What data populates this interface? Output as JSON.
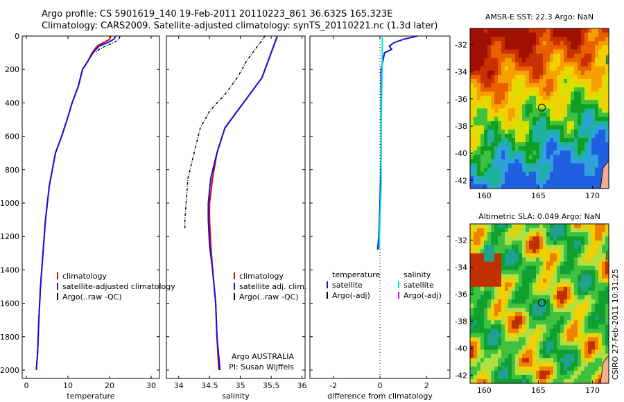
{
  "header": {
    "line1": "Argo profile: CS 5901619_140 19-Feb-2011 20110223_861 36.632S 165.323E",
    "line2": "Climatology: CARS2009. Satellite-adjusted climatology: synTS_20110221.nc (1.3d later)"
  },
  "credit": "CSIRO 27-Feb-2011 10:31:25",
  "colors": {
    "climatology": "#e00000",
    "satellite": "#1010e0",
    "argo": "#000000",
    "satellite_salinity": "#00e0e0",
    "argo_adj_salinity": "#e000e0"
  },
  "chart_data": [
    {
      "type": "line",
      "panel": "temperature",
      "xlabel": "temperature",
      "ylabel": "",
      "xlim": [
        -1,
        32
      ],
      "ylim": [
        2050,
        0
      ],
      "xticks": [
        "0",
        "10",
        "20",
        "30"
      ],
      "yticks": [
        "0",
        "200",
        "400",
        "600",
        "800",
        "1000",
        "1200",
        "1400",
        "1600",
        "1800",
        "2000"
      ],
      "legend": [
        "climatology",
        "satellite-adjusted climatology",
        "Argo(..raw -QC)"
      ],
      "legend_position": "lower-middle",
      "series": [
        {
          "name": "climatology",
          "color": "#e00000",
          "x": [
            20.3,
            20.0,
            18.5,
            17.0,
            15.8,
            14.8,
            13.5,
            12.5,
            11.0,
            9.8,
            8.5,
            7.0,
            5.5,
            4.6,
            4.0,
            3.4,
            3.0,
            2.7,
            2.4
          ],
          "y": [
            0,
            20,
            40,
            60,
            100,
            150,
            200,
            300,
            400,
            500,
            600,
            700,
            900,
            1100,
            1300,
            1500,
            1700,
            1900,
            2000
          ]
        },
        {
          "name": "satellite-adjusted climatology",
          "color": "#1010e0",
          "x": [
            21.5,
            21.0,
            19.5,
            17.5,
            16.0,
            14.8,
            13.5,
            12.5,
            11.0,
            9.8,
            8.5,
            7.0,
            5.5,
            4.6,
            4.0,
            3.4,
            3.0,
            2.7,
            2.4
          ],
          "y": [
            0,
            20,
            40,
            60,
            100,
            150,
            200,
            300,
            400,
            500,
            600,
            700,
            900,
            1100,
            1300,
            1500,
            1700,
            1900,
            2000
          ]
        },
        {
          "name": "Argo(..raw -QC)",
          "color": "#000000",
          "x": [
            22.5,
            22.3,
            21.0,
            19.0,
            17.5,
            16.5
          ],
          "y": [
            0,
            20,
            40,
            60,
            80,
            100
          ]
        }
      ]
    },
    {
      "type": "line",
      "panel": "salinity",
      "xlabel": "salinity",
      "xlim": [
        33.8,
        36.05
      ],
      "ylim": [
        2050,
        0
      ],
      "xticks": [
        "34",
        "34.5",
        "35",
        "35.5",
        "36"
      ],
      "legend": [
        "climatology",
        "satellite adj. clim.",
        "Argo(..raw -QC)"
      ],
      "legend_position": "lower-middle",
      "annotation": [
        "Argo AUSTRALIA",
        "PI: Susan Wijffels"
      ],
      "series": [
        {
          "name": "climatology",
          "color": "#e00000",
          "x": [
            35.6,
            35.55,
            35.45,
            35.35,
            35.15,
            34.95,
            34.75,
            34.62,
            34.55,
            34.5,
            34.5,
            34.52,
            34.55,
            34.6,
            34.62,
            34.65
          ],
          "y": [
            0,
            50,
            150,
            250,
            350,
            450,
            550,
            700,
            850,
            1000,
            1100,
            1250,
            1400,
            1600,
            1800,
            2000
          ]
        },
        {
          "name": "satellite adj. clim.",
          "color": "#1010e0",
          "x": [
            35.6,
            35.55,
            35.45,
            35.35,
            35.15,
            34.95,
            34.75,
            34.62,
            34.52,
            34.48,
            34.48,
            34.5,
            34.55,
            34.6,
            34.62,
            34.67
          ],
          "y": [
            0,
            50,
            150,
            250,
            350,
            450,
            550,
            700,
            850,
            1000,
            1100,
            1250,
            1400,
            1600,
            1800,
            2000
          ]
        },
        {
          "name": "Argo(..raw -QC)",
          "color": "#000000",
          "x": [
            35.4,
            35.3,
            35.2,
            35.1,
            34.95,
            34.75,
            34.5,
            34.35,
            34.25,
            34.15,
            34.12,
            34.1,
            34.1
          ],
          "y": [
            0,
            50,
            100,
            150,
            250,
            350,
            450,
            550,
            700,
            850,
            1000,
            1100,
            1150
          ]
        }
      ]
    },
    {
      "type": "line",
      "panel": "difference",
      "xlabel": "difference from climatology",
      "xlim": [
        -3,
        3
      ],
      "ylim": [
        2050,
        0
      ],
      "xticks": [
        "-2",
        "0",
        "2"
      ],
      "legend": [
        "temperature",
        "satellite",
        "Argo(-adj)",
        "salinity",
        "satellite",
        "Argo(-adj)"
      ],
      "legend_position": "lower-middle",
      "series": [
        {
          "name": "temperature satellite",
          "color": "#1010e0",
          "x": [
            1.6,
            1.0,
            0.6,
            0.4,
            0.5,
            0.2,
            0.05,
            0.05,
            0.05,
            0.0,
            -0.05,
            -0.1
          ],
          "y": [
            0,
            20,
            40,
            60,
            80,
            100,
            200,
            400,
            700,
            1000,
            1200,
            1280
          ]
        },
        {
          "name": "salinity satellite",
          "color": "#00e0e0",
          "x": [
            0.1,
            0.1,
            0.08,
            0.05,
            0.05,
            0.0,
            -0.02,
            -0.02
          ],
          "y": [
            0,
            100,
            300,
            600,
            900,
            1100,
            1200,
            1280
          ]
        }
      ]
    },
    {
      "type": "heatmap",
      "panel": "sst-map",
      "title": "AMSR-E SST: 22.3 Argo: NaN",
      "xlim": [
        158.7,
        171.5
      ],
      "ylim": [
        -42.6,
        -30.8
      ],
      "xticks": [
        "160",
        "165",
        "170"
      ],
      "yticks": [
        "-32",
        "-34",
        "-36",
        "-38",
        "-40",
        "-42"
      ],
      "marker": {
        "lon": 165.323,
        "lat": -36.632
      }
    },
    {
      "type": "heatmap",
      "panel": "sla-map",
      "title": "Altimetric SLA: 0.049 Argo: NaN",
      "xlim": [
        158.7,
        171.5
      ],
      "ylim": [
        -42.6,
        -30.8
      ],
      "xticks": [
        "160",
        "165",
        "170"
      ],
      "yticks": [
        "-32",
        "-34",
        "-36",
        "-38",
        "-40",
        "-42"
      ],
      "marker": {
        "lon": 165.323,
        "lat": -36.632
      }
    }
  ]
}
